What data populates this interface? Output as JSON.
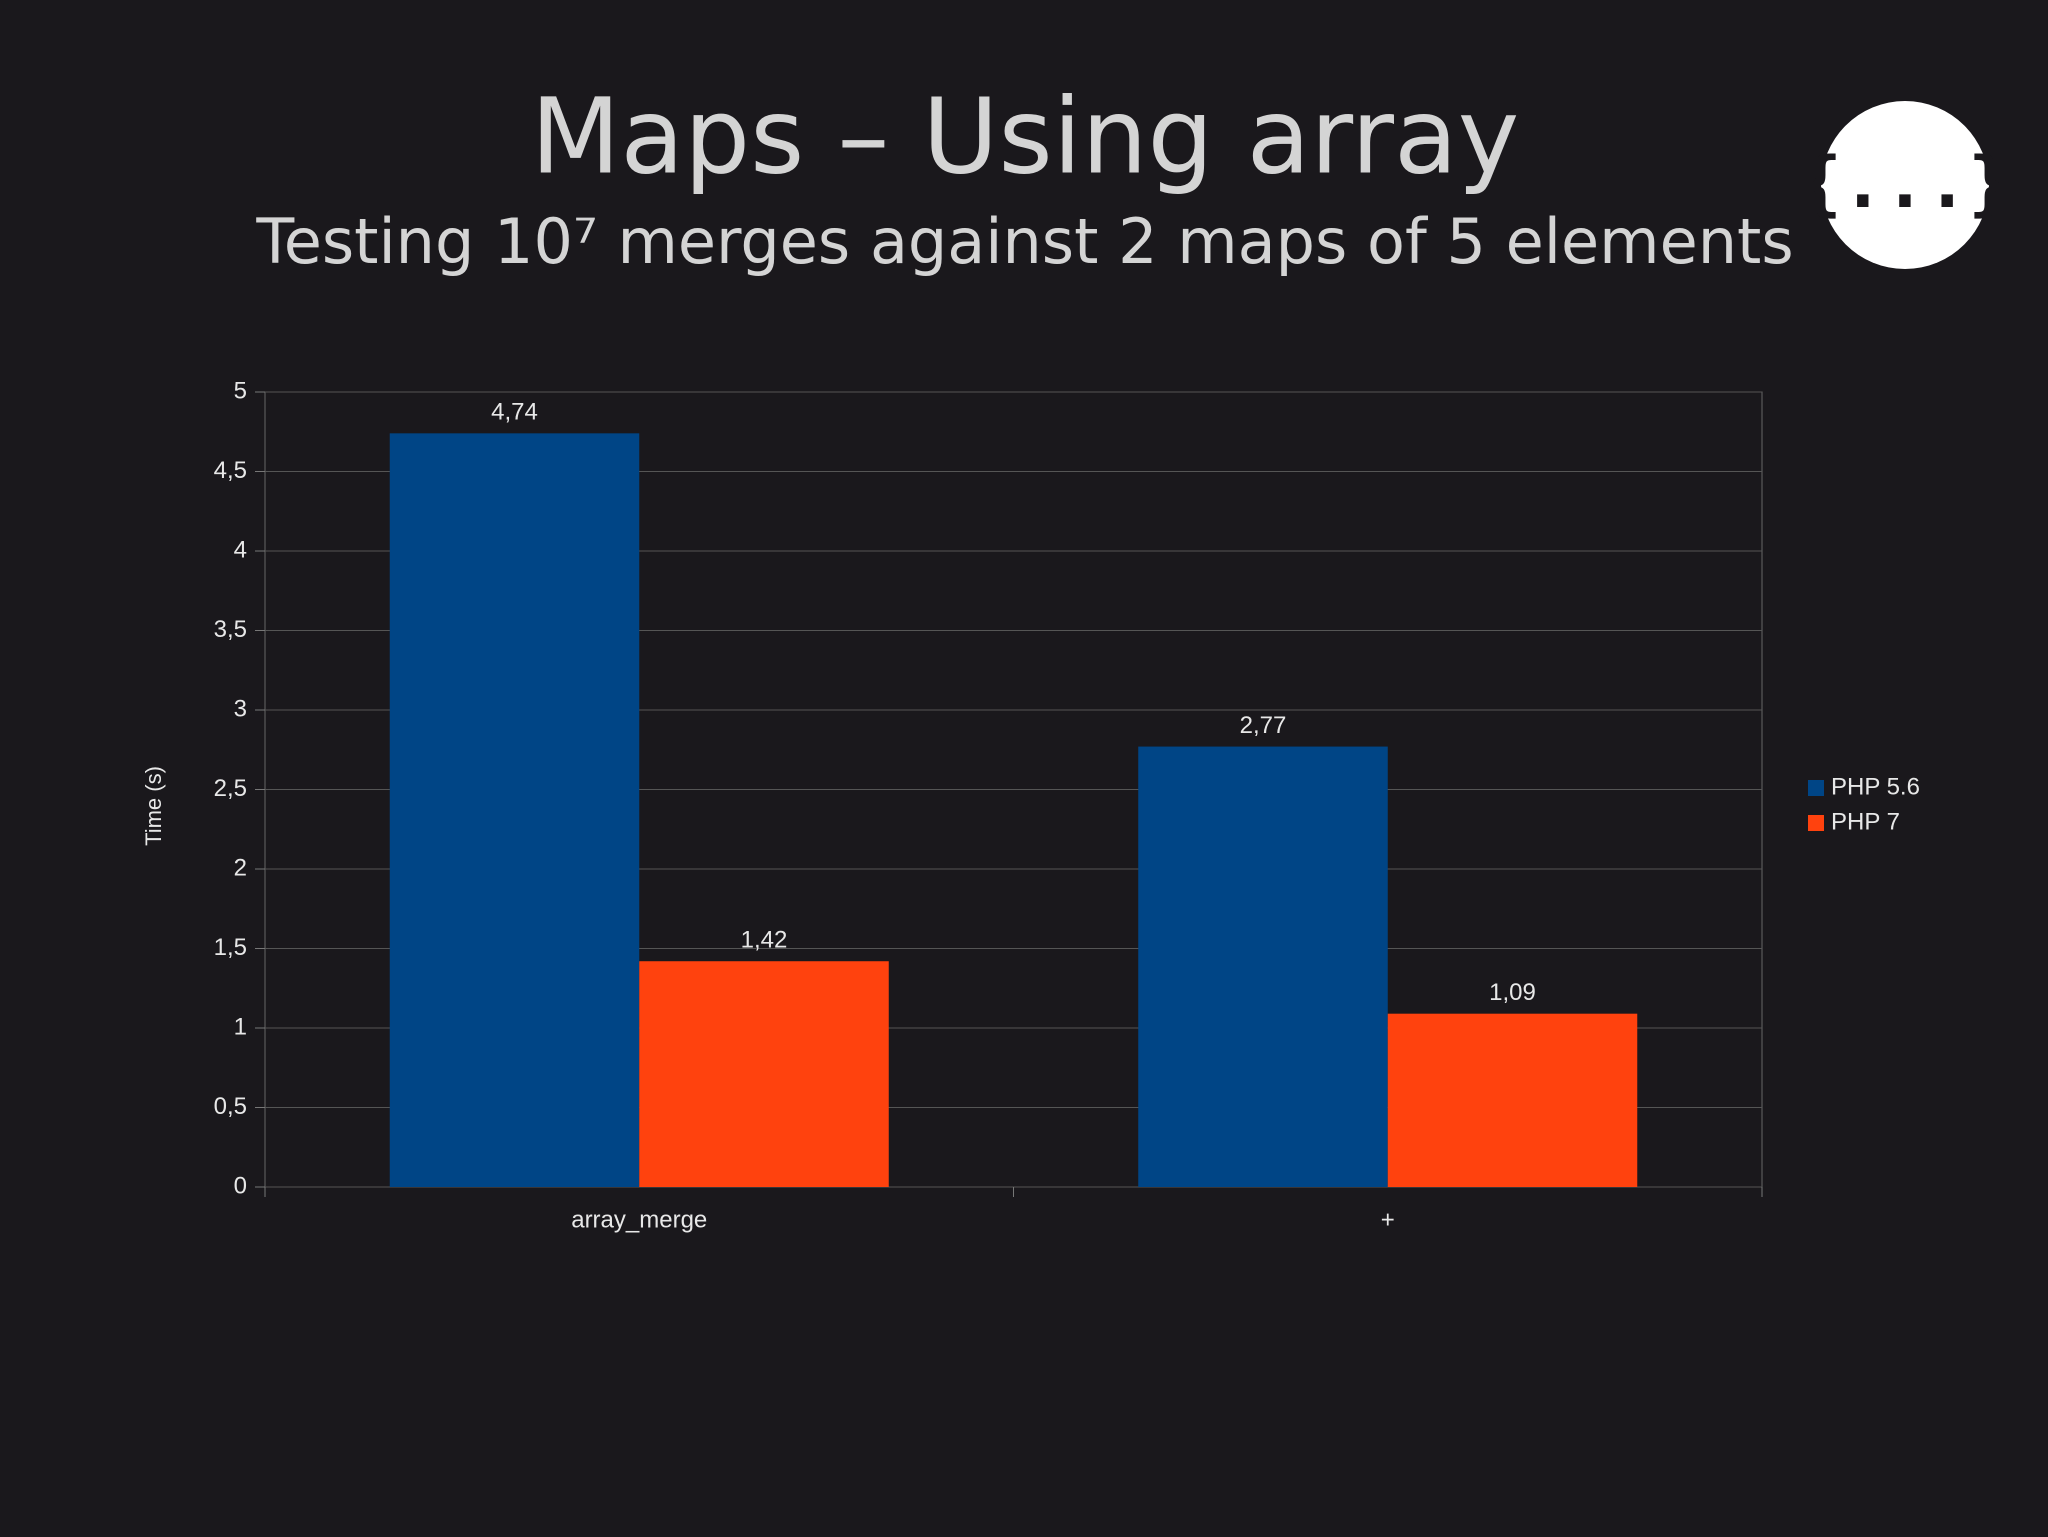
{
  "chart_data": {
    "type": "bar",
    "title": "Maps – Using array",
    "subtitle": "Testing 10⁷ merges against 2 maps of 5 elements",
    "logo": "{...}",
    "y_label": "Time (s)",
    "categories": [
      "array_merge",
      "+"
    ],
    "series": [
      {
        "name": "PHP 5.6",
        "color": "#004586",
        "values": [
          4.74,
          2.77
        ],
        "value_labels": [
          "4,74",
          "2,77"
        ]
      },
      {
        "name": "PHP 7",
        "color": "#ff420e",
        "values": [
          1.42,
          1.09
        ],
        "value_labels": [
          "1,42",
          "1,09"
        ]
      }
    ],
    "ylim": [
      0,
      5
    ],
    "yticks": [
      0,
      {
        "value": 0.5,
        "label": "0,5"
      },
      1,
      {
        "value": 1.5,
        "label": "1,5"
      },
      2,
      {
        "value": 2.5,
        "label": "2,5"
      },
      3,
      {
        "value": 3.5,
        "label": "3,5"
      },
      4,
      {
        "value": 4.5,
        "label": "4,5"
      },
      5
    ],
    "grid": true,
    "legend": "right"
  }
}
